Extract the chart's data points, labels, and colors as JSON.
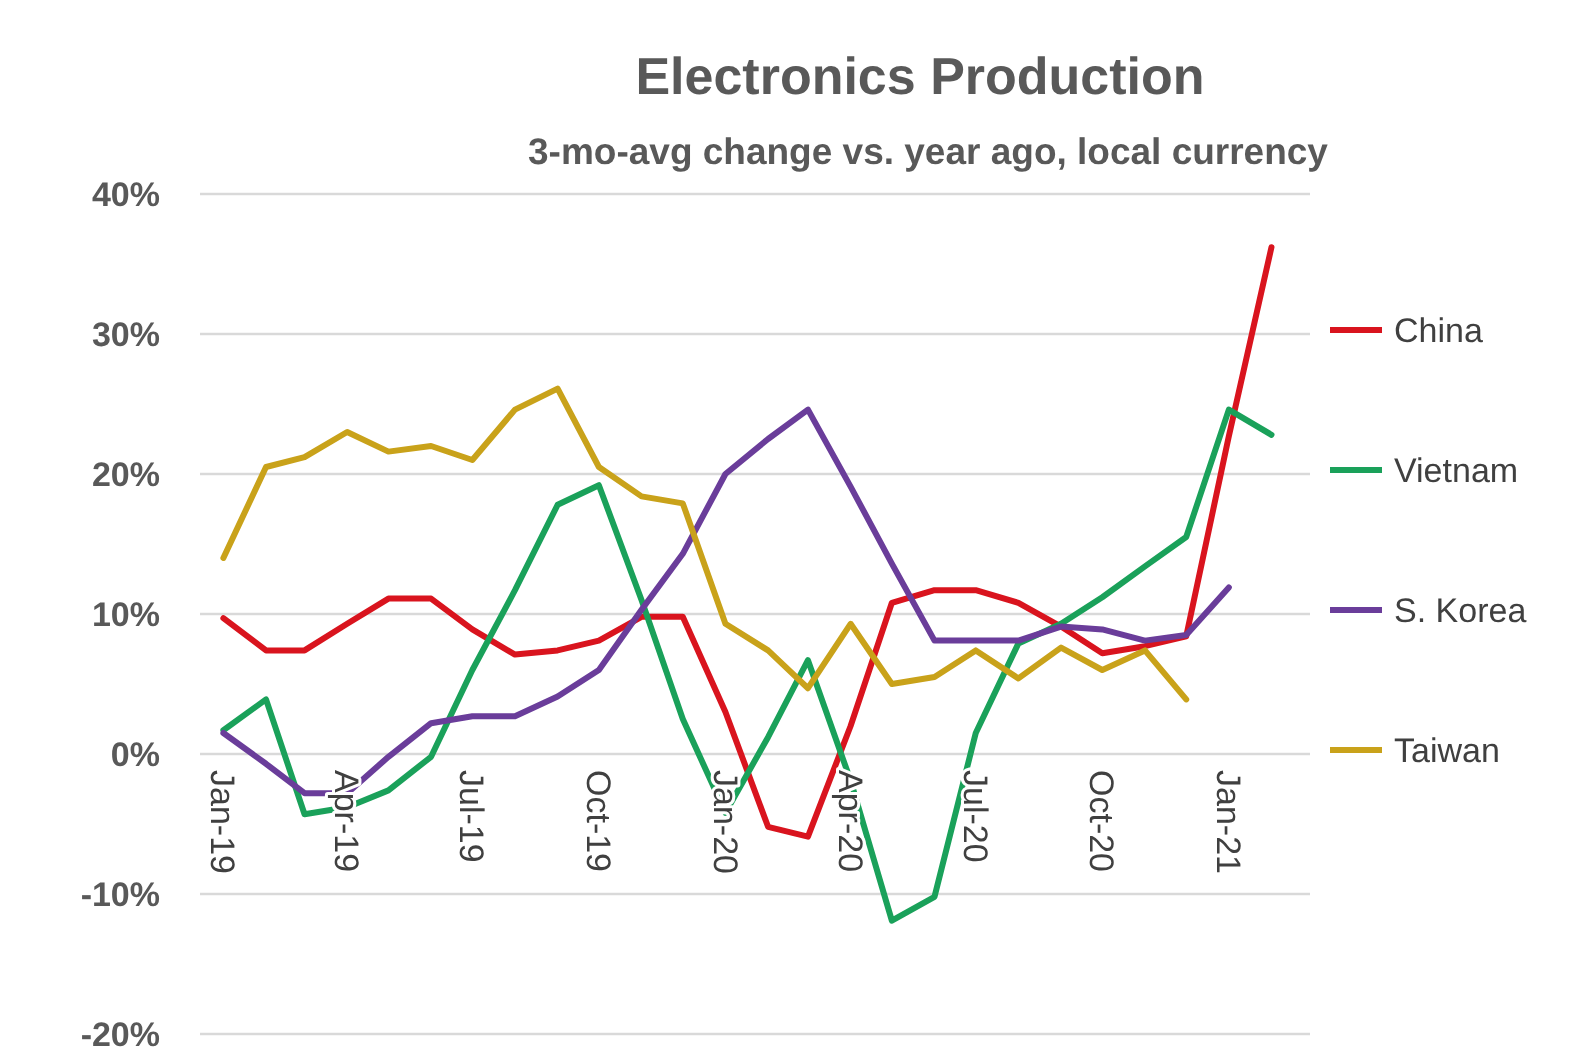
{
  "chart_data": {
    "type": "line",
    "title": "Electronics Production",
    "subtitle": "3-mo-avg change vs. year ago, local currency",
    "x": [
      "2019-01",
      "2019-02",
      "2019-03",
      "2019-04",
      "2019-05",
      "2019-06",
      "2019-07",
      "2019-08",
      "2019-09",
      "2019-10",
      "2019-11",
      "2019-12",
      "2020-01",
      "2020-02",
      "2020-03",
      "2020-04",
      "2020-05",
      "2020-06",
      "2020-07",
      "2020-08",
      "2020-09",
      "2020-10",
      "2020-11",
      "2020-12",
      "2021-01",
      "2021-02"
    ],
    "xlim": [
      "2018-12-15",
      "2021-03-01"
    ],
    "xticks": [
      {
        "value": "2019-01",
        "label": "Jan-19"
      },
      {
        "value": "2019-04",
        "label": "Apr-19"
      },
      {
        "value": "2019-07",
        "label": "Jul-19"
      },
      {
        "value": "2019-10",
        "label": "Oct-19"
      },
      {
        "value": "2020-01",
        "label": "Jan-20"
      },
      {
        "value": "2020-04",
        "label": "Apr-20"
      },
      {
        "value": "2020-07",
        "label": "Jul-20"
      },
      {
        "value": "2020-10",
        "label": "Oct-20"
      },
      {
        "value": "2021-01",
        "label": "Jan-21"
      }
    ],
    "ylim": [
      -20,
      40
    ],
    "yticks": [
      {
        "value": -20,
        "label": "-20%"
      },
      {
        "value": -10,
        "label": "-10%"
      },
      {
        "value": 0,
        "label": "0%"
      },
      {
        "value": 10,
        "label": "10%"
      },
      {
        "value": 20,
        "label": "20%"
      },
      {
        "value": 30,
        "label": "30%"
      },
      {
        "value": 40,
        "label": "40%"
      }
    ],
    "grid": "y",
    "legend": "right",
    "series": [
      {
        "name": "China",
        "color": "#d9141e",
        "values": [
          9.7,
          7.4,
          7.4,
          9.3,
          11.1,
          11.1,
          8.9,
          7.1,
          7.4,
          8.1,
          9.8,
          9.8,
          3,
          -5.2,
          -5.9,
          2,
          10.8,
          11.7,
          11.7,
          10.8,
          9.1,
          7.2,
          7.7,
          8.4,
          22.7,
          36.2
        ]
      },
      {
        "name": "Vietnam",
        "color": "#1aa15a",
        "values": [
          1.7,
          3.9,
          -4.3,
          -3.8,
          -2.6,
          -0.2,
          6.0,
          11.7,
          17.8,
          19.2,
          11.0,
          2.5,
          -4.2,
          1.2,
          6.7,
          -1.9,
          -11.9,
          -10.2,
          1.5,
          7.9,
          9.3,
          11.2,
          13.4,
          15.5,
          24.6,
          22.8
        ]
      },
      {
        "name": "S. Korea",
        "color": "#6a3d9a",
        "values": [
          1.5,
          -0.7,
          -2.8,
          -2.8,
          -0.2,
          2.2,
          2.7,
          2.7,
          4.1,
          6.0,
          10.3,
          14.3,
          20.0,
          22.5,
          24.6,
          19.1,
          13.6,
          8.1,
          8.1,
          8.1,
          9.1,
          8.9,
          8.1,
          8.5,
          11.9,
          null
        ]
      },
      {
        "name": "Taiwan",
        "color": "#c9a21a",
        "values": [
          14.0,
          20.5,
          21.2,
          23.0,
          21.6,
          22.0,
          21.0,
          24.6,
          26.1,
          20.5,
          18.4,
          17.9,
          9.3,
          7.4,
          4.7,
          9.3,
          5.0,
          5.5,
          7.4,
          5.4,
          7.6,
          6.0,
          7.4,
          3.9,
          null,
          null
        ]
      }
    ]
  }
}
